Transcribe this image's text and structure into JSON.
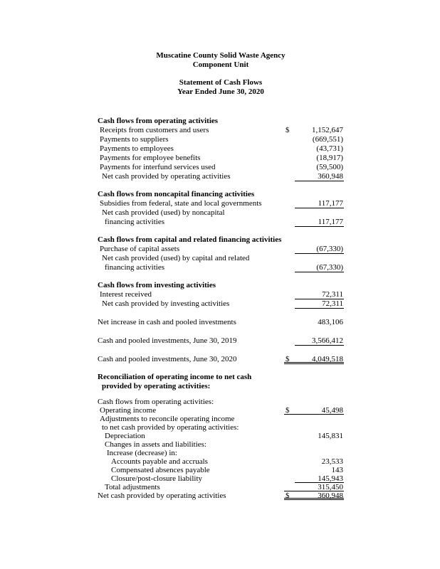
{
  "page": {
    "background": "#ffffff",
    "text_color": "#000000"
  },
  "header": {
    "org_name": "Muscatine County Solid Waste Agency",
    "org_subtitle": "Component Unit",
    "statement_title": "Statement of Cash Flows",
    "period": "Year Ended June 30, 2020"
  },
  "statement": {
    "rows": [
      {
        "label": "Cash flows from operating activities",
        "indent": 0,
        "bold": true,
        "dollar": "",
        "value": "",
        "line": "none",
        "gap": 0,
        "tight": false
      },
      {
        "label": "Receipts from customers and users",
        "indent": 1,
        "bold": false,
        "dollar": "$",
        "value": "1,152,647",
        "line": "none",
        "gap": 0,
        "tight": false
      },
      {
        "label": "Payments to suppliers",
        "indent": 1,
        "bold": false,
        "dollar": "",
        "value": "(669,551)",
        "line": "none",
        "gap": 0,
        "tight": false
      },
      {
        "label": "Payments to employees",
        "indent": 1,
        "bold": false,
        "dollar": "",
        "value": "(43,731)",
        "line": "none",
        "gap": 0,
        "tight": false
      },
      {
        "label": "Payments for employee benefits",
        "indent": 1,
        "bold": false,
        "dollar": "",
        "value": "(18,917)",
        "line": "none",
        "gap": 0,
        "tight": false
      },
      {
        "label": "Payments for interfund services used",
        "indent": 1,
        "bold": false,
        "dollar": "",
        "value": "(59,500)",
        "line": "none",
        "gap": 0,
        "tight": false
      },
      {
        "label": "Net cash provided by operating activities",
        "indent": 2,
        "bold": false,
        "dollar": "",
        "value": "360,948",
        "line": "single",
        "gap": 0,
        "tight": false
      },
      {
        "label": "Cash flows from noncapital financing activities",
        "indent": 0,
        "bold": true,
        "dollar": "",
        "value": "",
        "line": "none",
        "gap": 12,
        "tight": false
      },
      {
        "label": "Subsidies from federal, state and local governments",
        "indent": 1,
        "bold": false,
        "dollar": "",
        "value": "117,177",
        "line": "single",
        "gap": 0,
        "tight": false
      },
      {
        "label": "Net cash provided (used) by noncapital",
        "indent": 2,
        "bold": false,
        "dollar": "",
        "value": "",
        "line": "none",
        "gap": 0,
        "tight": false
      },
      {
        "label": "financing activities",
        "indent": 3,
        "bold": false,
        "dollar": "",
        "value": "117,177",
        "line": "single",
        "gap": 0,
        "tight": false
      },
      {
        "label": "Cash flows from capital and related financing activities",
        "indent": 0,
        "bold": true,
        "dollar": "",
        "value": "",
        "line": "none",
        "gap": 12,
        "tight": false
      },
      {
        "label": "Purchase of capital assets",
        "indent": 1,
        "bold": false,
        "dollar": "",
        "value": "(67,330)",
        "line": "single",
        "gap": 0,
        "tight": false
      },
      {
        "label": "Net cash provided (used) by capital and related",
        "indent": 2,
        "bold": false,
        "dollar": "",
        "value": "",
        "line": "none",
        "gap": 0,
        "tight": false
      },
      {
        "label": "financing activities",
        "indent": 3,
        "bold": false,
        "dollar": "",
        "value": "(67,330)",
        "line": "single",
        "gap": 0,
        "tight": false
      },
      {
        "label": "Cash flows from investing activities",
        "indent": 0,
        "bold": true,
        "dollar": "",
        "value": "",
        "line": "none",
        "gap": 12,
        "tight": false
      },
      {
        "label": "Interest received",
        "indent": 1,
        "bold": false,
        "dollar": "",
        "value": "72,311",
        "line": "single",
        "gap": 0,
        "tight": false
      },
      {
        "label": "Net cash provided by investing activities",
        "indent": 2,
        "bold": false,
        "dollar": "",
        "value": "72,311",
        "line": "single",
        "gap": 0,
        "tight": false
      },
      {
        "label": "Net increase in cash and pooled investments",
        "indent": 0,
        "bold": false,
        "dollar": "",
        "value": "483,106",
        "line": "none",
        "gap": 13,
        "tight": false
      },
      {
        "label": "Cash and pooled investments, June 30, 2019",
        "indent": 0,
        "bold": false,
        "dollar": "",
        "value": "3,566,412",
        "line": "single",
        "gap": 13,
        "tight": false
      },
      {
        "label": "Cash and pooled investments, June 30, 2020",
        "indent": 0,
        "bold": false,
        "dollar": "$",
        "value": "4,049,518",
        "line": "double",
        "gap": 13,
        "tight": false
      },
      {
        "label": "Reconciliation of operating income to net cash",
        "indent": 0,
        "bold": true,
        "dollar": "",
        "value": "",
        "line": "none",
        "gap": 12,
        "tight": false
      },
      {
        "label": "provided by operating activities:",
        "indent": 2,
        "bold": true,
        "dollar": "",
        "value": "",
        "line": "none",
        "gap": 0,
        "tight": false
      },
      {
        "label": "Cash flows from operating activities:",
        "indent": 0,
        "bold": false,
        "dollar": "",
        "value": "",
        "line": "none",
        "gap": 9,
        "tight": true
      },
      {
        "label": "Operating income",
        "indent": 1,
        "bold": false,
        "dollar": "$",
        "value": "45,498",
        "line": "single_full",
        "gap": 0,
        "tight": true
      },
      {
        "label": "Adjustments to reconcile operating income",
        "indent": 1,
        "bold": false,
        "dollar": "",
        "value": "",
        "line": "none",
        "gap": 0,
        "tight": true
      },
      {
        "label": "to net cash provided by operating activities:",
        "indent": 2,
        "bold": false,
        "dollar": "",
        "value": "",
        "line": "none",
        "gap": 0,
        "tight": true
      },
      {
        "label": "Depreciation",
        "indent": 3,
        "bold": false,
        "dollar": "",
        "value": "145,831",
        "line": "none",
        "gap": 0,
        "tight": true
      },
      {
        "label": "Changes in assets and liabilities:",
        "indent": 3,
        "bold": false,
        "dollar": "",
        "value": "",
        "line": "none",
        "gap": 0,
        "tight": true
      },
      {
        "label": "Increase (decrease) in:",
        "indent": 4,
        "bold": false,
        "dollar": "",
        "value": "",
        "line": "none",
        "gap": 0,
        "tight": true
      },
      {
        "label": "Accounts payable and accruals",
        "indent": 5,
        "bold": false,
        "dollar": "",
        "value": "23,533",
        "line": "none",
        "gap": 0,
        "tight": true
      },
      {
        "label": "Compensated absences payable",
        "indent": 5,
        "bold": false,
        "dollar": "",
        "value": "143",
        "line": "none",
        "gap": 0,
        "tight": true
      },
      {
        "label": "Closure/post-closure liability",
        "indent": 5,
        "bold": false,
        "dollar": "",
        "value": "145,943",
        "line": "single",
        "gap": 0,
        "tight": true
      },
      {
        "label": "Total adjustments",
        "indent": 3,
        "bold": false,
        "dollar": "",
        "value": "315,450",
        "line": "single_full",
        "gap": 0,
        "tight": true
      },
      {
        "label": "Net cash provided by operating activities",
        "indent": 0,
        "bold": false,
        "dollar": "$",
        "value": "360,948",
        "line": "double",
        "gap": 0,
        "tight": true
      }
    ]
  }
}
